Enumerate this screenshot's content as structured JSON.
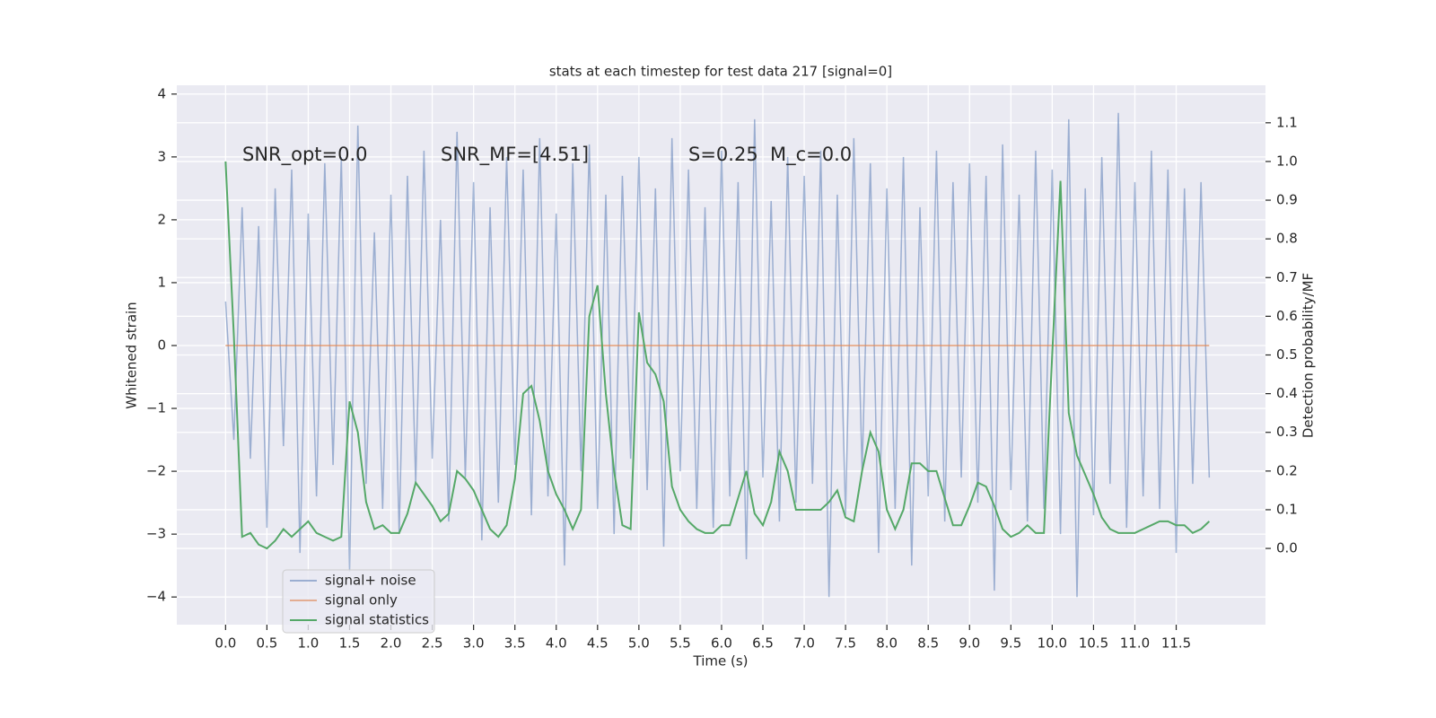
{
  "chart_data": {
    "type": "line",
    "title": "stats at each timestep for test data 217 [signal=0]",
    "x_label": "Time (s)",
    "y_label": "Whitened strain",
    "y2_label": "Detection probability/MF",
    "annotations": [
      "SNR_opt=0.0",
      "SNR_MF=[4.51]",
      "S=0.25",
      "M_c=0.0"
    ],
    "legend": "lower left",
    "grid": true,
    "background": "#eaeaf2",
    "x": [
      0,
      0.1,
      0.2,
      0.3,
      0.4,
      0.5,
      0.6,
      0.7,
      0.8,
      0.9,
      1,
      1.1,
      1.2,
      1.3,
      1.4,
      1.5,
      1.6,
      1.7,
      1.8,
      1.9,
      2,
      2.1,
      2.2,
      2.3,
      2.4,
      2.5,
      2.6,
      2.7,
      2.8,
      2.9,
      3,
      3.1,
      3.2,
      3.3,
      3.4,
      3.5,
      3.6,
      3.7,
      3.8,
      3.9,
      4,
      4.1,
      4.2,
      4.3,
      4.4,
      4.5,
      4.6,
      4.7,
      4.8,
      4.9,
      5,
      5.1,
      5.2,
      5.3,
      5.4,
      5.5,
      5.6,
      5.7,
      5.8,
      5.9,
      6,
      6.1,
      6.2,
      6.3,
      6.4,
      6.5,
      6.6,
      6.7,
      6.8,
      6.9,
      7,
      7.1,
      7.2,
      7.3,
      7.4,
      7.5,
      7.6,
      7.7,
      7.8,
      7.9,
      8,
      8.1,
      8.2,
      8.3,
      8.4,
      8.5,
      8.6,
      8.7,
      8.8,
      8.9,
      9,
      9.1,
      9.2,
      9.3,
      9.4,
      9.5,
      9.6,
      9.7,
      9.8,
      9.9,
      10,
      10.1,
      10.2,
      10.3,
      10.4,
      10.5,
      10.6,
      10.7,
      10.8,
      10.9,
      11,
      11.1,
      11.2,
      11.3,
      11.4,
      11.5,
      11.6,
      11.7,
      11.8,
      11.9
    ],
    "series": [
      {
        "name": "signal+ noise",
        "color": "#4c72b0",
        "values": [
          0.7,
          -1.5,
          2.2,
          -1.8,
          1.9,
          -2.9,
          2.5,
          -1.6,
          2.8,
          -3.3,
          2.1,
          -2.4,
          2.9,
          -1.9,
          3.0,
          -3.6,
          3.5,
          -2.2,
          1.8,
          -2.6,
          2.4,
          -3.0,
          2.7,
          -2.2,
          3.1,
          -1.8,
          2.0,
          -2.8,
          3.4,
          -2.1,
          2.6,
          -3.1,
          2.2,
          -2.5,
          3.0,
          -1.9,
          2.8,
          -2.7,
          3.3,
          -2.4,
          2.1,
          -3.5,
          2.9,
          -2.0,
          3.2,
          -2.6,
          2.4,
          -3.0,
          2.7,
          -1.8,
          3.0,
          -2.3,
          2.5,
          -3.2,
          3.3,
          -2.0,
          2.8,
          -2.6,
          2.2,
          -2.9,
          3.1,
          -2.4,
          2.6,
          -3.4,
          3.6,
          -2.1,
          2.3,
          -2.8,
          3.0,
          -2.5,
          2.7,
          -2.2,
          3.1,
          -4.0,
          2.4,
          -2.7,
          3.3,
          -2.0,
          2.9,
          -3.3,
          2.5,
          -2.6,
          3.0,
          -3.5,
          2.2,
          -2.4,
          3.1,
          -2.8,
          2.6,
          -2.1,
          2.9,
          -2.5,
          2.7,
          -3.9,
          3.2,
          -2.3,
          2.4,
          -2.8,
          3.1,
          -2.6,
          2.8,
          -3.0,
          3.6,
          -4.0,
          2.5,
          -2.7,
          3.0,
          -2.2,
          3.7,
          -2.9,
          2.6,
          -2.4,
          3.1,
          -2.6,
          2.8,
          -3.3,
          2.5,
          -2.2,
          2.6,
          -2.1
        ]
      },
      {
        "name": "signal only",
        "color": "#dd8452",
        "x": [
          0,
          11.9
        ],
        "values": [
          0,
          0
        ]
      },
      {
        "name": "signal statistics",
        "color": "#55a868",
        "axis": "y2",
        "values": [
          1.0,
          0.55,
          0.03,
          0.04,
          0.01,
          0.0,
          0.02,
          0.05,
          0.03,
          0.05,
          0.07,
          0.04,
          0.03,
          0.02,
          0.03,
          0.38,
          0.3,
          0.12,
          0.05,
          0.06,
          0.04,
          0.04,
          0.09,
          0.17,
          0.14,
          0.11,
          0.07,
          0.09,
          0.2,
          0.18,
          0.15,
          0.1,
          0.05,
          0.03,
          0.06,
          0.18,
          0.4,
          0.42,
          0.33,
          0.2,
          0.14,
          0.1,
          0.05,
          0.1,
          0.6,
          0.68,
          0.4,
          0.2,
          0.06,
          0.05,
          0.61,
          0.48,
          0.45,
          0.38,
          0.16,
          0.1,
          0.07,
          0.05,
          0.04,
          0.04,
          0.06,
          0.06,
          0.13,
          0.2,
          0.09,
          0.06,
          0.12,
          0.25,
          0.2,
          0.1,
          0.1,
          0.1,
          0.1,
          0.12,
          0.15,
          0.08,
          0.07,
          0.2,
          0.3,
          0.25,
          0.1,
          0.05,
          0.1,
          0.22,
          0.22,
          0.2,
          0.2,
          0.13,
          0.06,
          0.06,
          0.11,
          0.17,
          0.16,
          0.11,
          0.05,
          0.03,
          0.04,
          0.06,
          0.04,
          0.04,
          0.5,
          0.95,
          0.35,
          0.24,
          0.19,
          0.14,
          0.08,
          0.05,
          0.04,
          0.04,
          0.04,
          0.05,
          0.06,
          0.07,
          0.07,
          0.06,
          0.06,
          0.04,
          0.05,
          0.07
        ]
      }
    ],
    "xlim": [
      -0.59,
      12.58
    ],
    "xticks": [
      {
        "value": 0,
        "label": "0.0"
      },
      0.5,
      {
        "value": 1,
        "label": "1.0"
      },
      1.5,
      {
        "value": 2,
        "label": "2.0"
      },
      2.5,
      {
        "value": 3,
        "label": "3.0"
      },
      3.5,
      {
        "value": 4,
        "label": "4.0"
      },
      4.5,
      {
        "value": 5,
        "label": "5.0"
      },
      5.5,
      {
        "value": 6,
        "label": "6.0"
      },
      6.5,
      {
        "value": 7,
        "label": "7.0"
      },
      7.5,
      {
        "value": 8,
        "label": "8.0"
      },
      8.5,
      {
        "value": 9,
        "label": "9.0"
      },
      9.5,
      {
        "value": 10,
        "label": "10.0"
      },
      10.5,
      {
        "value": 11,
        "label": "11.0"
      },
      11.5
    ],
    "ylim": [
      -4.44,
      4.14
    ],
    "yticks": [
      {
        "value": -4,
        "label": "−4"
      },
      {
        "value": -3,
        "label": "−3"
      },
      {
        "value": -2,
        "label": "−2"
      },
      {
        "value": -1,
        "label": "−1"
      },
      0,
      1,
      2,
      3,
      4
    ],
    "y2lim": [
      -0.197,
      1.197
    ],
    "y2ticks": [
      {
        "value": 0,
        "label": "0.0"
      },
      0.1,
      0.2,
      0.3,
      0.4,
      0.5,
      0.6,
      0.7,
      0.8,
      0.9,
      {
        "value": 1,
        "label": "1.0"
      },
      1.1
    ]
  }
}
